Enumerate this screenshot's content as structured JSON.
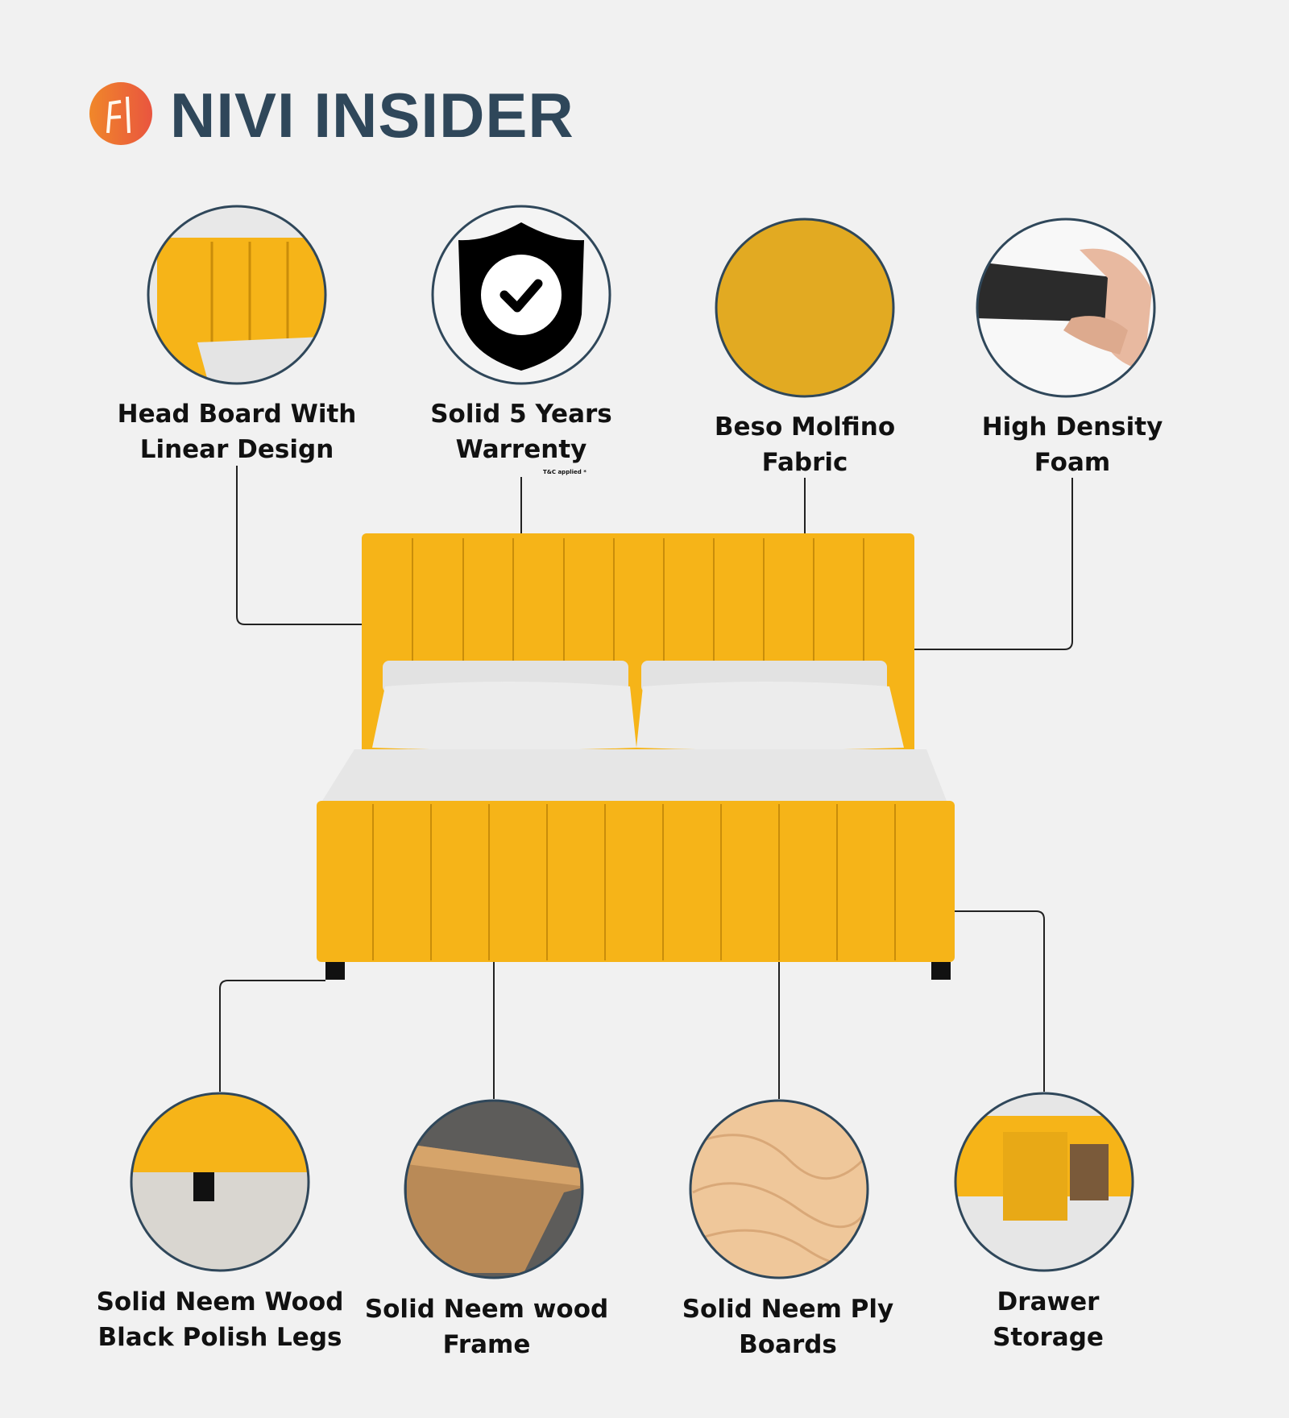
{
  "brand": {
    "name": "NIVI INSIDER",
    "logo_icon": "furniture-chair-logo",
    "logo_colors": [
      "#f0872a",
      "#e9553f"
    ],
    "text_color": "#2f475a"
  },
  "product": {
    "color": "#f6b418"
  },
  "features_top": [
    {
      "line1": "Head Board With",
      "line2": "Linear Design"
    },
    {
      "line1": "Solid 5 Years",
      "line2": "Warrenty",
      "note": "T&C applied *"
    },
    {
      "line1": "Beso Molfino",
      "line2": "Fabric"
    },
    {
      "line1": "High Density",
      "line2": "Foam"
    }
  ],
  "features_bottom": [
    {
      "line1": "Solid Neem Wood",
      "line2": "Black Polish Legs"
    },
    {
      "line1": "Solid Neem wood",
      "line2": "Frame"
    },
    {
      "line1": "Solid Neem Ply",
      "line2": "Boards"
    },
    {
      "line1": "Drawer",
      "line2": "Storage"
    }
  ]
}
